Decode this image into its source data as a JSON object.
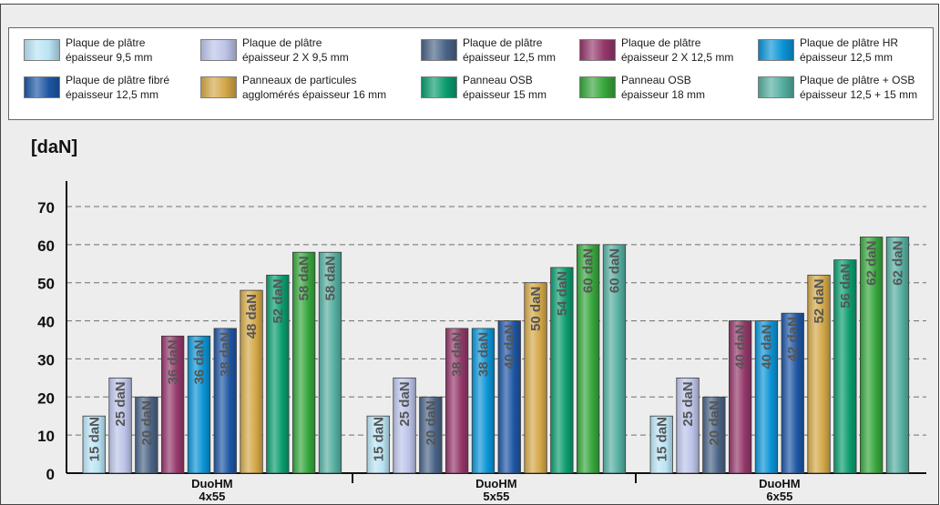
{
  "chart_data": {
    "type": "bar",
    "ylabel": "[daN]",
    "ylim": [
      0,
      70
    ],
    "yticks": [
      0,
      10,
      20,
      30,
      40,
      50,
      60,
      70
    ],
    "grid": true,
    "legend_position": "top",
    "categories": [
      "DuoHM\n4x55",
      "DuoHM\n5x55",
      "DuoHM\n6x55"
    ],
    "value_unit": "daN",
    "series": [
      {
        "name": "Plaque de plâtre\népaisseur 9,5 mm",
        "color": "#b9e3f4",
        "values": [
          15,
          15,
          15
        ]
      },
      {
        "name": "Plaque de plâtre\népaisseur 2 X 9,5 mm",
        "color": "#bcc3e8",
        "values": [
          25,
          25,
          25
        ]
      },
      {
        "name": "Plaque de plâtre\népaisseur 12,5 mm",
        "color": "#4a6386",
        "values": [
          20,
          20,
          20
        ]
      },
      {
        "name": "Plaque de plâtre\népaisseur 2 X 12,5 mm",
        "color": "#94376a",
        "values": [
          36,
          38,
          40
        ]
      },
      {
        "name": "Plaque de plâtre HR\népaisseur 12,5 mm",
        "color": "#0a93d6",
        "values": [
          36,
          38,
          40
        ]
      },
      {
        "name": "Plaque de plâtre fibré\népaisseur 12,5 mm",
        "color": "#1d56a4",
        "values": [
          38,
          40,
          42
        ]
      },
      {
        "name": "Panneaux de particules\nagglomérés épaisseur 16 mm",
        "color": "#d3a748",
        "values": [
          48,
          50,
          52
        ]
      },
      {
        "name": "Panneau OSB\népaisseur 15 mm",
        "color": "#0b9c6e",
        "values": [
          52,
          54,
          56
        ]
      },
      {
        "name": "Panneau OSB\népaisseur 18 mm",
        "color": "#36a63b",
        "values": [
          58,
          60,
          62
        ]
      },
      {
        "name": "Plaque de plâtre + OSB\népaisseur 12,5 + 15 mm",
        "color": "#55aea0",
        "values": [
          58,
          60,
          62
        ]
      }
    ]
  }
}
